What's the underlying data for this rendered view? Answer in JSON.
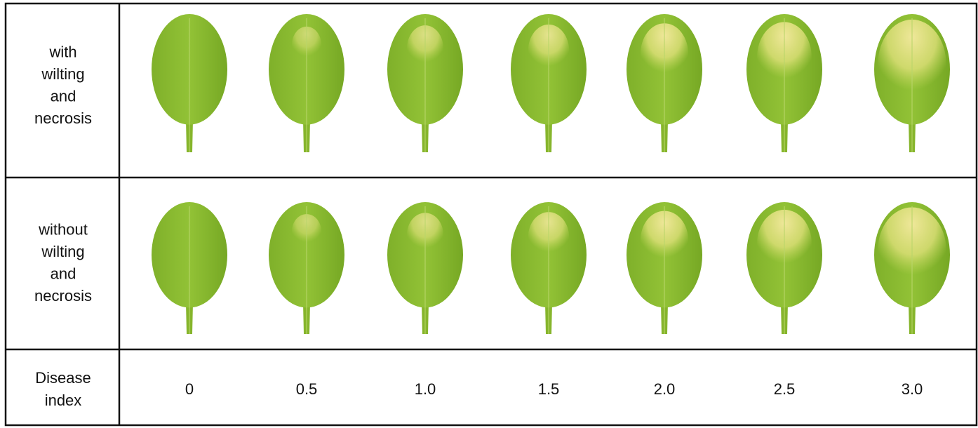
{
  "rows": [
    {
      "label": [
        "with",
        "wilting",
        "and",
        "necrosis"
      ]
    },
    {
      "label": [
        "without",
        "wilting",
        "and",
        "necrosis"
      ]
    }
  ],
  "index_row": {
    "label": [
      "Disease",
      "index"
    ],
    "values": [
      "0",
      "0.5",
      "1.0",
      "1.5",
      "2.0",
      "2.5",
      "3.0"
    ]
  }
}
